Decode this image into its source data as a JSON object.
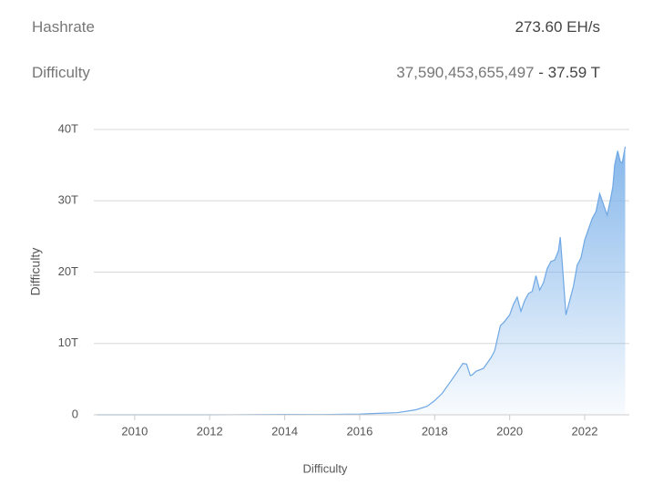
{
  "header": {
    "rows": [
      {
        "label": "Hashrate",
        "value": "273.60 EH/s"
      },
      {
        "label": "Difficulty",
        "value": "37,590,453,655,497",
        "separator": "-",
        "value_short": "37.59 T"
      }
    ]
  },
  "chart_data": {
    "type": "area",
    "x_label": "Difficulty",
    "y_label": "Difficulty",
    "x": [
      2009.0,
      2010.0,
      2011.0,
      2012.0,
      2013.0,
      2014.0,
      2015.0,
      2016.0,
      2016.5,
      2017.0,
      2017.5,
      2017.8,
      2018.0,
      2018.2,
      2018.4,
      2018.6,
      2018.75,
      2018.85,
      2018.95,
      2019.0,
      2019.1,
      2019.3,
      2019.5,
      2019.6,
      2019.75,
      2019.85,
      2020.0,
      2020.1,
      2020.2,
      2020.3,
      2020.4,
      2020.5,
      2020.6,
      2020.7,
      2020.8,
      2020.9,
      2021.0,
      2021.1,
      2021.2,
      2021.3,
      2021.35,
      2021.42,
      2021.5,
      2021.6,
      2021.7,
      2021.8,
      2021.9,
      2022.0,
      2022.1,
      2022.2,
      2022.3,
      2022.4,
      2022.5,
      2022.6,
      2022.7,
      2022.75,
      2022.8,
      2022.88,
      2022.95,
      2023.0,
      2023.08
    ],
    "series": [
      {
        "name": "Difficulty",
        "color": "#6fa8e4",
        "values": [
          0,
          0,
          0,
          0,
          0.01,
          0.05,
          0.04,
          0.1,
          0.2,
          0.3,
          0.7,
          1.2,
          2.0,
          3.0,
          4.5,
          6.0,
          7.2,
          7.1,
          5.5,
          5.6,
          6.1,
          6.5,
          8.0,
          9.0,
          12.5,
          13.0,
          14.0,
          15.5,
          16.5,
          14.5,
          16.0,
          17.0,
          17.3,
          19.5,
          17.5,
          18.5,
          20.5,
          21.5,
          21.7,
          23.0,
          24.9,
          20.0,
          14.0,
          16.0,
          18.0,
          21.0,
          22.0,
          24.5,
          26.0,
          27.5,
          28.5,
          31.0,
          29.5,
          28.0,
          30.5,
          32.0,
          35.0,
          37.0,
          35.5,
          35.3,
          37.59
        ]
      }
    ],
    "xlim": [
      2008.91,
      2023.19
    ],
    "xticks": [
      2010,
      2012,
      2014,
      2016,
      2018,
      2020,
      2022
    ],
    "ylim": [
      0,
      40
    ],
    "yticks": [
      0,
      {
        "value": 10,
        "label": "10T"
      },
      {
        "value": 20,
        "label": "20T"
      },
      {
        "value": 30,
        "label": "30T"
      },
      {
        "value": 40,
        "label": "40T"
      }
    ],
    "grid": true
  }
}
